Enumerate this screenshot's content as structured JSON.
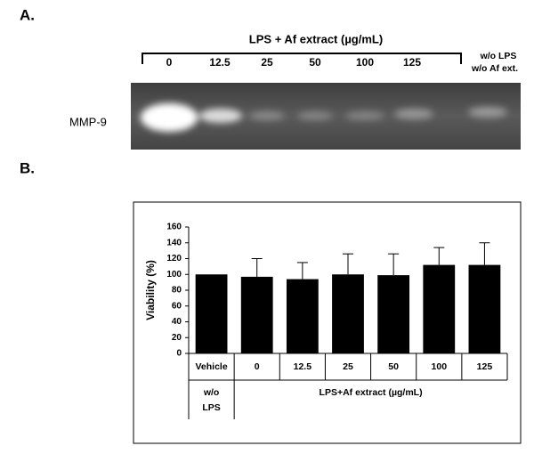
{
  "gel": {
    "panel_label": "A.",
    "title": "LPS + Af extract (µg/mL)",
    "lanes": [
      "0",
      "12.5",
      "25",
      "50",
      "100",
      "125"
    ],
    "control_label": [
      "w/o LPS",
      "w/o Af ext."
    ],
    "band_label": "MMP-9"
  },
  "chart_data": {
    "type": "bar",
    "panel_label": "B.",
    "y_label": "Viability (%)",
    "categories": [
      "Vehicle",
      "0",
      "12.5",
      "25",
      "50",
      "100",
      "125"
    ],
    "values": [
      100,
      97,
      94,
      100,
      99,
      112,
      112
    ],
    "errors": [
      null,
      23,
      21,
      26,
      27,
      22,
      28
    ],
    "color": "#000000",
    "ylim": [
      0,
      160
    ],
    "yticks": [
      0,
      20,
      40,
      60,
      80,
      100,
      120,
      140,
      160
    ],
    "vehicle_note": [
      "w/o",
      "LPS"
    ],
    "group_label": "LPS+Af extract (µg/mL)"
  }
}
